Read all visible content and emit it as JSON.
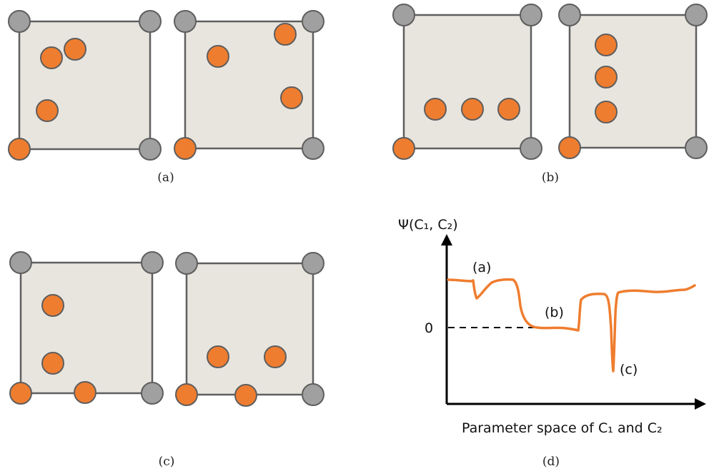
{
  "captions": {
    "a": "(a)",
    "b": "(b)",
    "c": "(c)",
    "d": "(d)"
  },
  "plot": {
    "ylabel": "Ψ(C₁, C₂)",
    "xlabel": "Parameter space of C₁ and C₂",
    "zero_label": "0",
    "point_labels": {
      "a": "(a)",
      "b": "(b)",
      "c": "(c)"
    }
  },
  "colors": {
    "cell_fill": "#e8e5df",
    "grey_atom": "#a0a0a0",
    "orange_atom": "#ef7d2f",
    "outline": "#5e5e5e"
  }
}
